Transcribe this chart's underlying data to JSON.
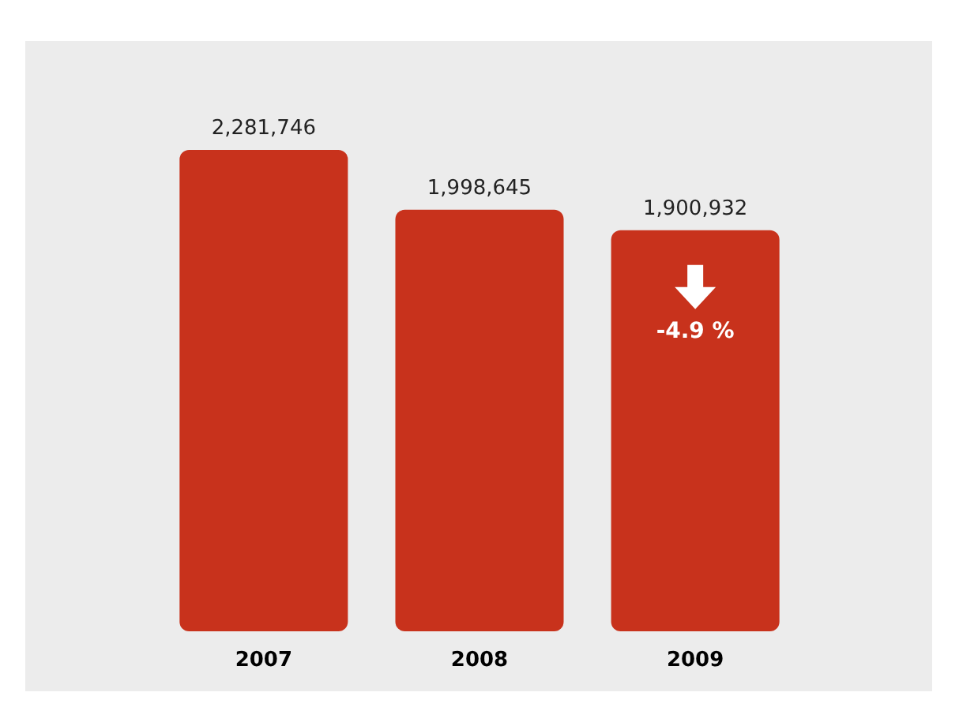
{
  "chart_data": {
    "type": "bar",
    "categories": [
      "2007",
      "2008",
      "2009"
    ],
    "values": [
      2281746,
      1998645,
      1900932
    ],
    "color": "#c8321c",
    "data_labels": true,
    "value_labels": [
      "2,281,746",
      "1,998,645",
      "1,900,932"
    ],
    "annotations": [
      "-4.9 %"
    ]
  }
}
